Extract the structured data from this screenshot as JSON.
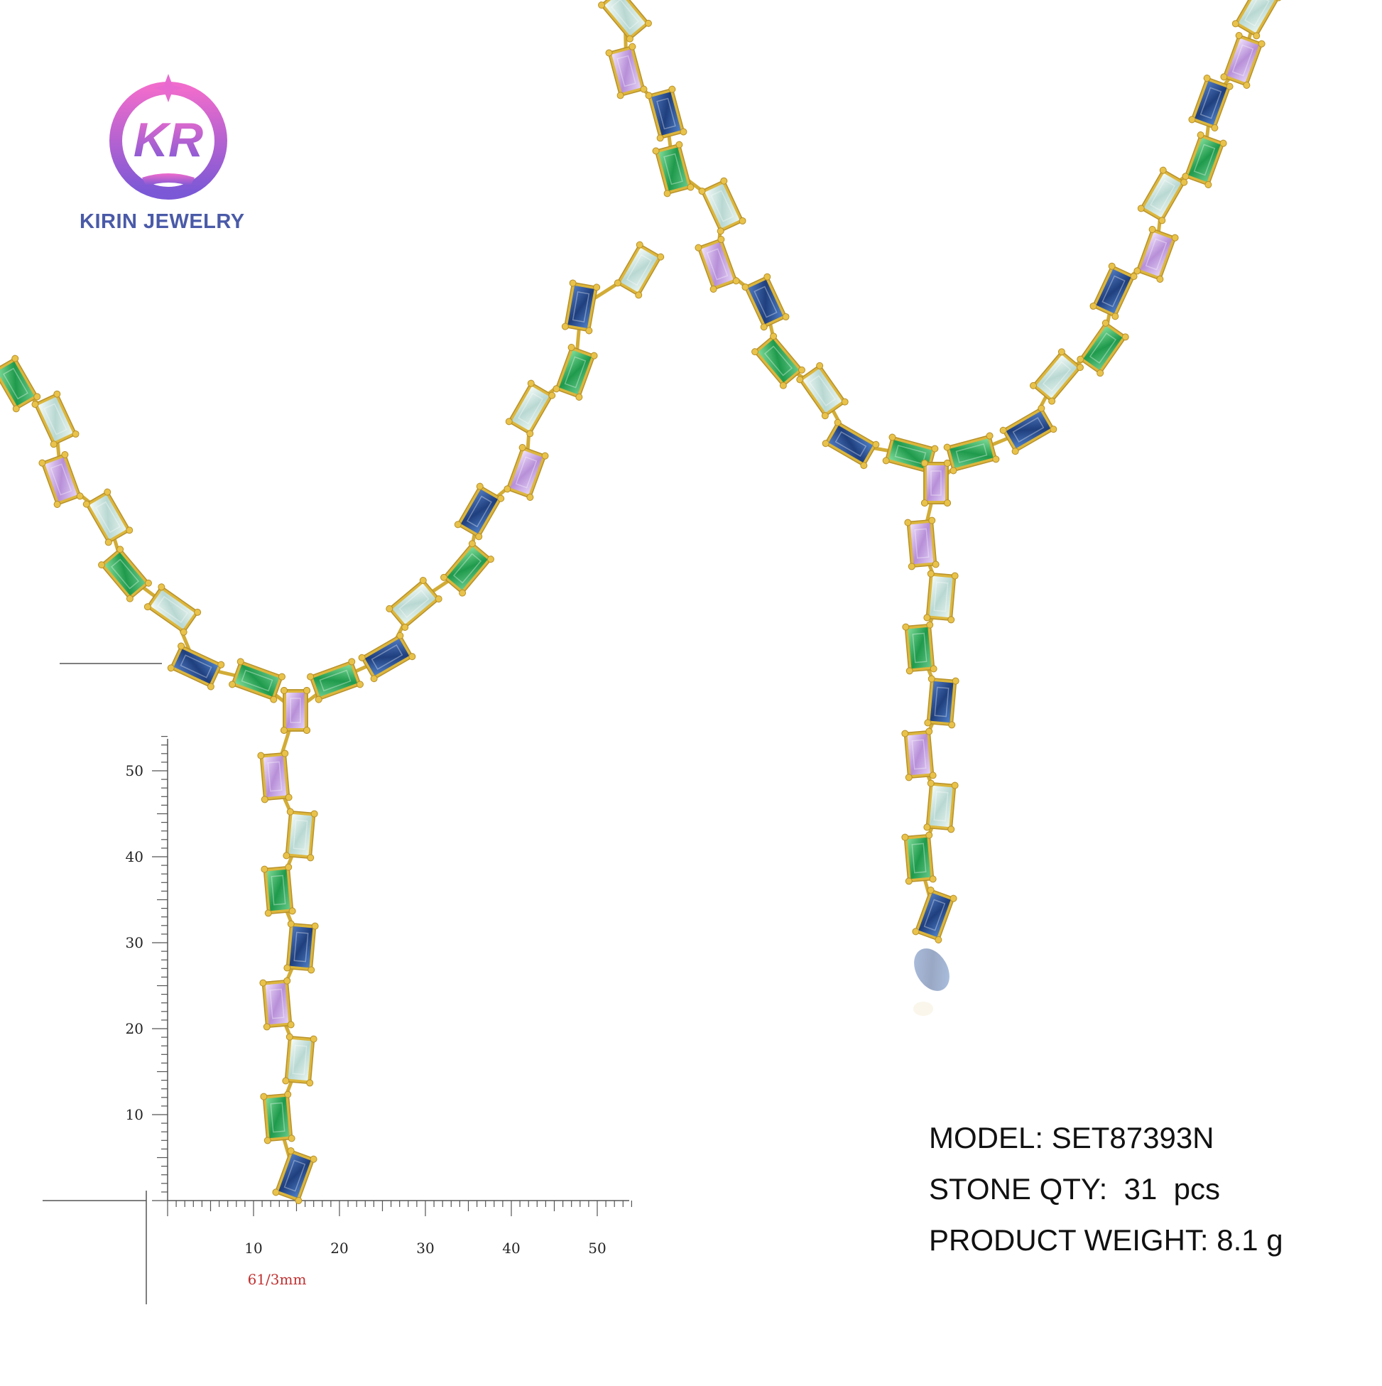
{
  "brand": {
    "monogram": "KR",
    "name": "KIRIN JEWELRY"
  },
  "specs": {
    "model_label": "MODEL: SET87393N",
    "stone_label": "STONE QTY:  31  pcs",
    "weight_label": "PRODUCT WEIGHT: 8.1 g"
  },
  "ruler": {
    "vertical_ticks": [
      "50",
      "40",
      "30",
      "20",
      "10"
    ],
    "horizontal_ticks": [
      "10",
      "20",
      "30",
      "40",
      "50"
    ],
    "dimension": "61/3mm"
  },
  "colors": {
    "gold": "#d8b43a",
    "sapphire": "#2a4f8f",
    "emerald": "#2fa35a",
    "lavender": "#c4a4dc",
    "aqua": "#cfe6e0",
    "logo_pink": "#e86ad0",
    "logo_purple": "#8a5ad8"
  },
  "icons": {
    "logo": "kirin-logo-icon",
    "necklace_left": "necklace-icon",
    "necklace_right": "necklace-icon"
  }
}
